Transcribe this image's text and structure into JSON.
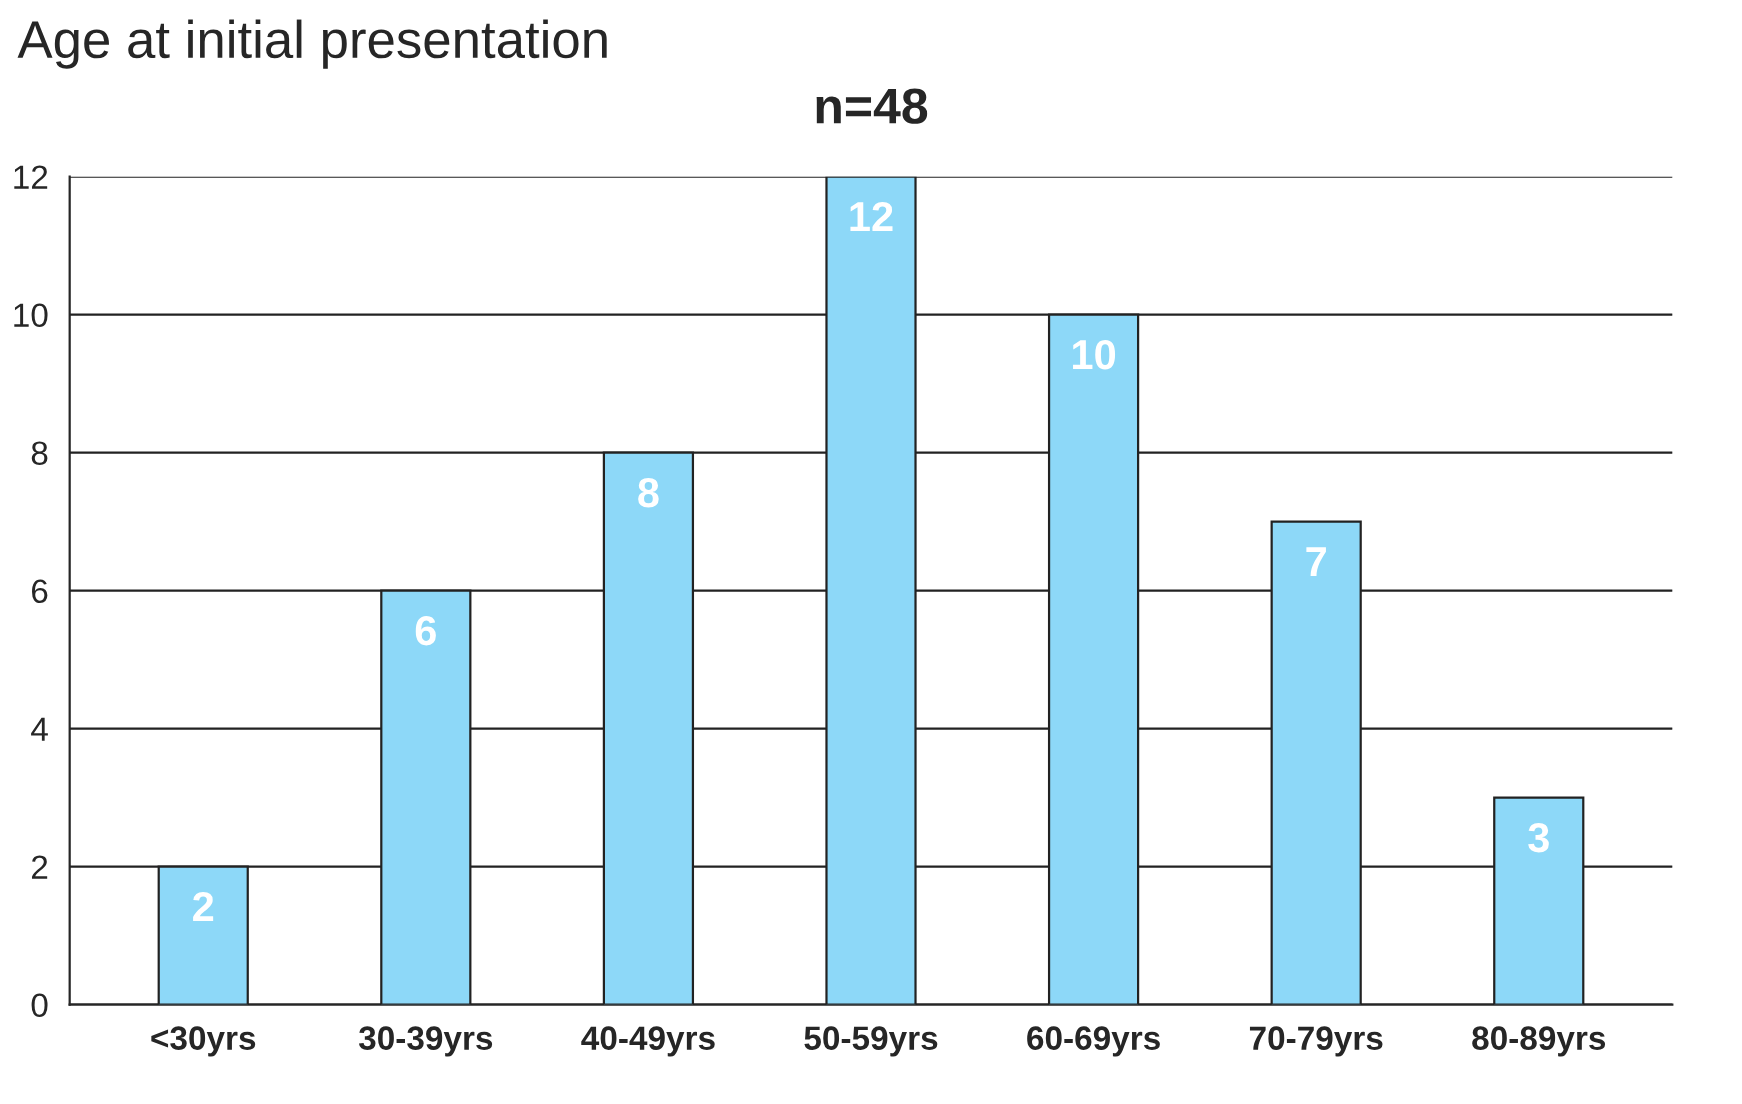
{
  "chart_data": {
    "type": "bar",
    "title": "Age at initial presentation",
    "subtitle": "n=48",
    "categories": [
      "<30yrs",
      "30-39yrs",
      "40-49yrs",
      "50-59yrs",
      "60-69yrs",
      "70-79yrs",
      "80-89yrs"
    ],
    "values": [
      2,
      6,
      8,
      12,
      10,
      7,
      3
    ],
    "color": "#8dd8f8",
    "ylim": [
      0,
      12
    ],
    "yticks": [
      0,
      2,
      4,
      6,
      8,
      10,
      12
    ],
    "grid": "y",
    "data_labels": true
  }
}
